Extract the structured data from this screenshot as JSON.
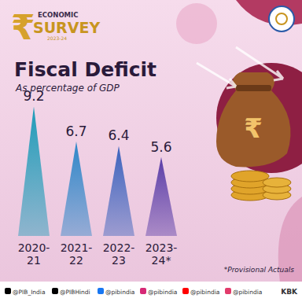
{
  "chart_data": {
    "type": "bar",
    "title": "Fiscal Deficit",
    "subtitle": "As percentage of GDP",
    "categories": [
      "2020-21",
      "2021-22",
      "2022-23",
      "2023-24*"
    ],
    "values": [
      9.2,
      6.7,
      6.4,
      5.6
    ],
    "colors": [
      "#1e9bb8",
      "#2e86c8",
      "#3c63bd",
      "#5b3ea8"
    ],
    "ylim": [
      0,
      10
    ],
    "tick_labels": false,
    "data_labels": true,
    "grid": false,
    "annotations": [
      "ECONOMIC",
      "SURVEY",
      "2023-24",
      "₹",
      "*Provisional Actuals",
      "@PIB_India",
      "@PIBHindi",
      "@pibindia",
      "@pibindia",
      "@pibindia",
      "@pibindia",
      "KBK"
    ]
  }
}
